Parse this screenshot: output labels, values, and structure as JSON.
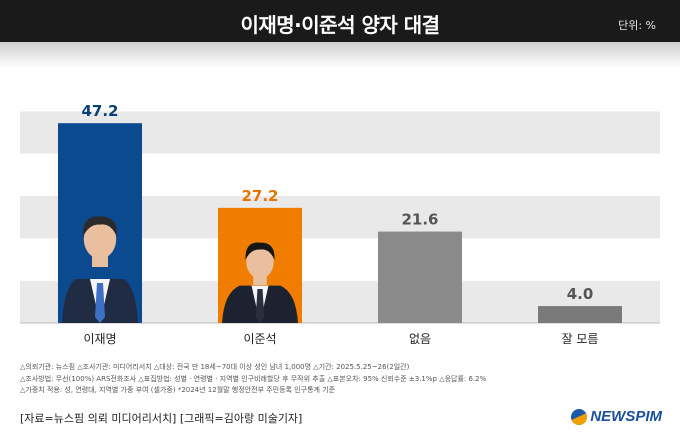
{
  "header": {
    "title": "이재명·이준석 양자 대결",
    "unit": "단위: %"
  },
  "chart_data": {
    "type": "bar",
    "categories": [
      "이재명",
      "이준석",
      "없음",
      "잘 모름"
    ],
    "values": [
      47.2,
      27.2,
      21.6,
      4.0
    ],
    "value_labels": [
      "47.2",
      "27.2",
      "21.6",
      "4.0"
    ],
    "ylim": [
      0,
      60
    ],
    "grid": true,
    "colors": [
      "#0b4a8e",
      "#f07d00",
      "#8a8a8a",
      "#7a7a7a"
    ],
    "label_colors": [
      "#0b3f7a",
      "#e87400",
      "#555555",
      "#555555"
    ]
  },
  "notes": [
    "△의뢰기관: 뉴스핌 △조사기관: 미디어리서치 △대상: 전국 만 18세~70대 이상 성인 남녀 1,000명 △기간: 2025.5.25~26(2일간)",
    "△조사방법: 무선(100%) ARS전화조사 △표집방법: 성별 · 연령별 · 지역별 인구비례할당 후 무작위 추출 △표본오차: 95% 신뢰수준 ±3.1%p △응답률: 6.2%",
    "△가중치 적용: 성, 연령대, 지역별 가중 부여 (셀가중) *2024년 12월말 행정안전부 주민등록 인구통계 기준"
  ],
  "credit": "[자료=뉴스핌 의뢰 미디어리서치] [그래픽=김아랑 미술기자]",
  "logo": {
    "text": "NEWSPIM"
  }
}
